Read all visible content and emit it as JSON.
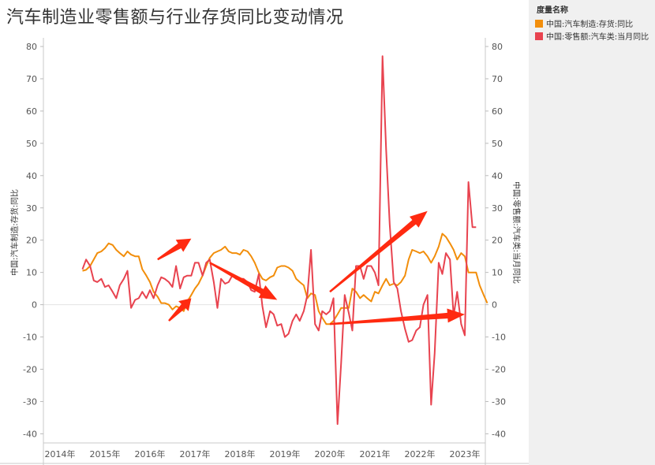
{
  "title": "汽车制造业零售额与行业存货同比变动情况",
  "legend": {
    "title": "度量名称",
    "items": [
      {
        "label": "中国:汽车制造:存货:同比",
        "color": "#F28E0B"
      },
      {
        "label": "中国:零售额:汽车类:当月同比",
        "color": "#E8434F"
      }
    ]
  },
  "chart_data": {
    "type": "line",
    "ylabel_left": "中国:汽车制造:存货:同比",
    "ylabel_right": "中国:零售额:汽车类:当月同比",
    "ylim": [
      -40,
      80
    ],
    "yticks": [
      80,
      70,
      60,
      50,
      40,
      30,
      20,
      10,
      0,
      -10,
      -20,
      -30,
      -40
    ],
    "xlim": [
      2014.0,
      2024.0
    ],
    "xticks": [
      {
        "label": "2014年",
        "value": 2014.0
      },
      {
        "label": "2015年",
        "value": 2015.0
      },
      {
        "label": "2016年",
        "value": 2016.0
      },
      {
        "label": "2017年",
        "value": 2017.0
      },
      {
        "label": "2018年",
        "value": 2018.0
      },
      {
        "label": "2019年",
        "value": 2019.0
      },
      {
        "label": "2020年",
        "value": 2020.0
      },
      {
        "label": "2021年",
        "value": 2021.0
      },
      {
        "label": "2022年",
        "value": 2022.0
      },
      {
        "label": "2023年",
        "value": 2023.0
      }
    ],
    "series": [
      {
        "name": "中国:汽车制造:存货:同比",
        "color": "#F28E0B",
        "points": [
          [
            2014.5,
            10.5
          ],
          [
            2014.58,
            10.8
          ],
          [
            2014.67,
            12
          ],
          [
            2014.75,
            14
          ],
          [
            2014.83,
            16
          ],
          [
            2014.92,
            16.5
          ],
          [
            2015.0,
            17.5
          ],
          [
            2015.08,
            19
          ],
          [
            2015.17,
            18.5
          ],
          [
            2015.25,
            17
          ],
          [
            2015.33,
            16
          ],
          [
            2015.42,
            15
          ],
          [
            2015.5,
            16.5
          ],
          [
            2015.58,
            15.5
          ],
          [
            2015.67,
            15
          ],
          [
            2015.75,
            15
          ],
          [
            2015.83,
            11
          ],
          [
            2015.92,
            9
          ],
          [
            2016.0,
            7
          ],
          [
            2016.08,
            4
          ],
          [
            2016.17,
            2.5
          ],
          [
            2016.25,
            0.5
          ],
          [
            2016.33,
            0.5
          ],
          [
            2016.42,
            0
          ],
          [
            2016.5,
            -1.5
          ],
          [
            2016.58,
            -0.5
          ],
          [
            2016.67,
            -1
          ],
          [
            2016.75,
            -2
          ],
          [
            2016.83,
            1
          ],
          [
            2016.92,
            3
          ],
          [
            2017.0,
            5
          ],
          [
            2017.08,
            6.5
          ],
          [
            2017.17,
            9
          ],
          [
            2017.25,
            12
          ],
          [
            2017.33,
            14.5
          ],
          [
            2017.42,
            16
          ],
          [
            2017.5,
            16.5
          ],
          [
            2017.58,
            17
          ],
          [
            2017.67,
            18
          ],
          [
            2017.75,
            16.5
          ],
          [
            2017.83,
            16
          ],
          [
            2017.92,
            16
          ],
          [
            2018.0,
            15.5
          ],
          [
            2018.08,
            17
          ],
          [
            2018.17,
            16.5
          ],
          [
            2018.25,
            15
          ],
          [
            2018.33,
            13
          ],
          [
            2018.42,
            10
          ],
          [
            2018.5,
            8
          ],
          [
            2018.58,
            7.5
          ],
          [
            2018.67,
            8.5
          ],
          [
            2018.75,
            9
          ],
          [
            2018.83,
            11.5
          ],
          [
            2018.92,
            12
          ],
          [
            2019.0,
            12
          ],
          [
            2019.08,
            11.5
          ],
          [
            2019.17,
            10.5
          ],
          [
            2019.25,
            8
          ],
          [
            2019.33,
            7
          ],
          [
            2019.42,
            6
          ],
          [
            2019.5,
            2
          ],
          [
            2019.58,
            3.5
          ],
          [
            2019.67,
            3
          ],
          [
            2019.75,
            -2
          ],
          [
            2019.83,
            -4
          ],
          [
            2019.92,
            -6
          ],
          [
            2020.0,
            -6
          ],
          [
            2020.08,
            -5
          ],
          [
            2020.17,
            -3
          ],
          [
            2020.25,
            -1
          ],
          [
            2020.33,
            -1
          ],
          [
            2020.42,
            -1
          ],
          [
            2020.5,
            5
          ],
          [
            2020.58,
            4
          ],
          [
            2020.67,
            2
          ],
          [
            2020.75,
            3
          ],
          [
            2020.83,
            2
          ],
          [
            2020.92,
            1
          ],
          [
            2021.0,
            4
          ],
          [
            2021.08,
            3.5
          ],
          [
            2021.17,
            6
          ],
          [
            2021.25,
            8
          ],
          [
            2021.33,
            6
          ],
          [
            2021.42,
            6.5
          ],
          [
            2021.5,
            6
          ],
          [
            2021.58,
            7
          ],
          [
            2021.67,
            9
          ],
          [
            2021.75,
            14
          ],
          [
            2021.83,
            17
          ],
          [
            2021.92,
            16.5
          ],
          [
            2022.0,
            16
          ],
          [
            2022.08,
            16.5
          ],
          [
            2022.17,
            15
          ],
          [
            2022.25,
            13
          ],
          [
            2022.33,
            15
          ],
          [
            2022.42,
            18
          ],
          [
            2022.5,
            22
          ],
          [
            2022.58,
            21
          ],
          [
            2022.67,
            19
          ],
          [
            2022.75,
            17
          ],
          [
            2022.83,
            14
          ],
          [
            2022.92,
            16
          ],
          [
            2023.0,
            15
          ],
          [
            2023.08,
            10
          ],
          [
            2023.17,
            10
          ],
          [
            2023.25,
            10
          ],
          [
            2023.33,
            6
          ],
          [
            2023.42,
            3
          ],
          [
            2023.5,
            0.5
          ]
        ]
      },
      {
        "name": "中国:零售额:汽车类:当月同比",
        "color": "#E8434F",
        "points": [
          [
            2014.5,
            11
          ],
          [
            2014.58,
            14
          ],
          [
            2014.67,
            12
          ],
          [
            2014.75,
            7.5
          ],
          [
            2014.83,
            7
          ],
          [
            2014.92,
            8
          ],
          [
            2015.0,
            5.5
          ],
          [
            2015.08,
            6
          ],
          [
            2015.17,
            4
          ],
          [
            2015.25,
            2
          ],
          [
            2015.33,
            6
          ],
          [
            2015.42,
            8
          ],
          [
            2015.5,
            10.5
          ],
          [
            2015.58,
            -1
          ],
          [
            2015.67,
            1.5
          ],
          [
            2015.75,
            2
          ],
          [
            2015.83,
            4
          ],
          [
            2015.92,
            2
          ],
          [
            2016.0,
            4.5
          ],
          [
            2016.08,
            2
          ],
          [
            2016.17,
            6
          ],
          [
            2016.25,
            8.5
          ],
          [
            2016.33,
            8
          ],
          [
            2016.42,
            7
          ],
          [
            2016.5,
            5.5
          ],
          [
            2016.58,
            12
          ],
          [
            2016.67,
            5
          ],
          [
            2016.75,
            8.5
          ],
          [
            2016.83,
            9
          ],
          [
            2016.92,
            9
          ],
          [
            2017.0,
            13
          ],
          [
            2017.08,
            13
          ],
          [
            2017.17,
            9
          ],
          [
            2017.25,
            13
          ],
          [
            2017.33,
            14
          ],
          [
            2017.42,
            7
          ],
          [
            2017.5,
            -1
          ],
          [
            2017.58,
            8
          ],
          [
            2017.67,
            6.5
          ],
          [
            2017.75,
            7
          ],
          [
            2017.83,
            9
          ],
          [
            2017.92,
            8
          ],
          [
            2018.0,
            8
          ],
          [
            2018.08,
            8
          ],
          [
            2018.17,
            7
          ],
          [
            2018.25,
            4.5
          ],
          [
            2018.33,
            4
          ],
          [
            2018.42,
            9.5
          ],
          [
            2018.5,
            -0.5
          ],
          [
            2018.58,
            -7
          ],
          [
            2018.67,
            -2
          ],
          [
            2018.75,
            -3
          ],
          [
            2018.83,
            -6.5
          ],
          [
            2018.92,
            -6
          ],
          [
            2019.0,
            -10
          ],
          [
            2019.08,
            -9
          ],
          [
            2019.17,
            -5
          ],
          [
            2019.25,
            -3
          ],
          [
            2019.33,
            -5
          ],
          [
            2019.42,
            -2
          ],
          [
            2019.5,
            3
          ],
          [
            2019.58,
            17
          ],
          [
            2019.67,
            -6
          ],
          [
            2019.75,
            -8
          ],
          [
            2019.83,
            -2
          ],
          [
            2019.92,
            -3
          ],
          [
            2020.0,
            -2
          ],
          [
            2020.08,
            2
          ],
          [
            2020.17,
            -37
          ],
          [
            2020.25,
            -18
          ],
          [
            2020.33,
            3
          ],
          [
            2020.42,
            -2.5
          ],
          [
            2020.5,
            -8
          ],
          [
            2020.58,
            12
          ],
          [
            2020.67,
            12
          ],
          [
            2020.75,
            8
          ],
          [
            2020.83,
            12
          ],
          [
            2020.92,
            12
          ],
          [
            2021.0,
            10
          ],
          [
            2021.08,
            6
          ],
          [
            2021.17,
            77
          ],
          [
            2021.25,
            48
          ],
          [
            2021.33,
            25
          ],
          [
            2021.42,
            7
          ],
          [
            2021.5,
            5
          ],
          [
            2021.58,
            -2
          ],
          [
            2021.67,
            -7.5
          ],
          [
            2021.75,
            -11.5
          ],
          [
            2021.83,
            -11
          ],
          [
            2021.92,
            -8
          ],
          [
            2022.0,
            -7
          ],
          [
            2022.08,
            0
          ],
          [
            2022.17,
            3
          ],
          [
            2022.25,
            -31
          ],
          [
            2022.33,
            -15
          ],
          [
            2022.42,
            13
          ],
          [
            2022.5,
            9.5
          ],
          [
            2022.58,
            16
          ],
          [
            2022.67,
            14
          ],
          [
            2022.75,
            -3.5
          ],
          [
            2022.83,
            4
          ],
          [
            2022.92,
            -6
          ],
          [
            2023.0,
            -9.5
          ],
          [
            2023.08,
            38
          ],
          [
            2023.17,
            24
          ],
          [
            2023.25,
            24
          ]
        ]
      }
    ],
    "annotations": [
      {
        "type": "arrow",
        "from": [
          2016.17,
          14
        ],
        "to": [
          2016.92,
          20.5
        ]
      },
      {
        "type": "arrow",
        "from": [
          2016.42,
          -5
        ],
        "to": [
          2016.92,
          2
        ]
      },
      {
        "type": "arrow",
        "from": [
          2017.33,
          13
        ],
        "to": [
          2018.83,
          1.5
        ]
      },
      {
        "type": "arrow",
        "from": [
          2020.0,
          4
        ],
        "to": [
          2022.17,
          29
        ]
      },
      {
        "type": "arrow",
        "from": [
          2020.0,
          -6
        ],
        "to": [
          2023.0,
          -3
        ]
      }
    ]
  }
}
